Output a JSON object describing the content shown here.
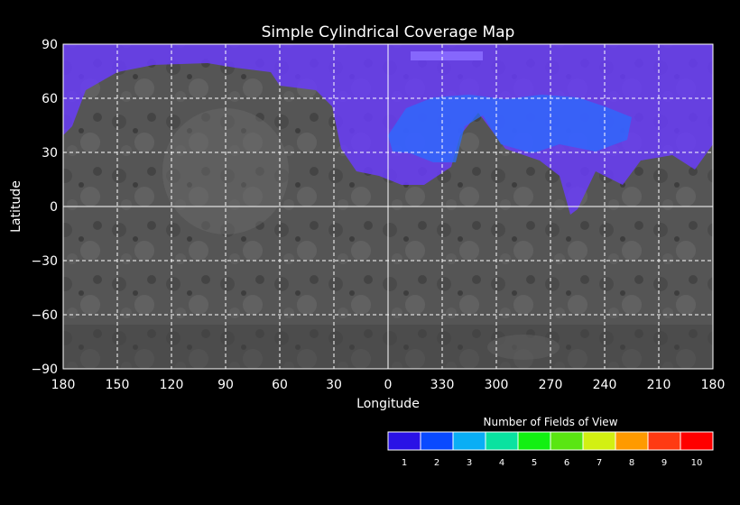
{
  "map": {
    "title": "Simple Cylindrical Coverage Map",
    "xlabel": "Longitude",
    "ylabel": "Latitude",
    "lon_ticks": [
      "180",
      "150",
      "120",
      "90",
      "60",
      "30",
      "0",
      "330",
      "300",
      "270",
      "240",
      "210",
      "180"
    ],
    "lat_ticks": [
      "90",
      "60",
      "30",
      "0",
      "−30",
      "−60",
      "−90"
    ],
    "grid": "dashed",
    "background": "grayscale surface basemap"
  },
  "legend": {
    "title": "Number of Fields of View",
    "levels": [
      {
        "label": "1",
        "color": "#2a12e6"
      },
      {
        "label": "2",
        "color": "#0a4aff"
      },
      {
        "label": "3",
        "color": "#0aaef5"
      },
      {
        "label": "4",
        "color": "#0ae2a0"
      },
      {
        "label": "5",
        "color": "#12f012"
      },
      {
        "label": "6",
        "color": "#5ae612"
      },
      {
        "label": "7",
        "color": "#d2f012"
      },
      {
        "label": "8",
        "color": "#ff9a00"
      },
      {
        "label": "9",
        "color": "#ff3a12"
      },
      {
        "label": "10",
        "color": "#ff0000"
      }
    ]
  },
  "coverage": {
    "regions": [
      {
        "name": "north-polar-coverage",
        "level": 1
      },
      {
        "name": "northern-swath-coverage",
        "level": 1
      },
      {
        "name": "overlap-coverage",
        "level": 2
      }
    ]
  }
}
